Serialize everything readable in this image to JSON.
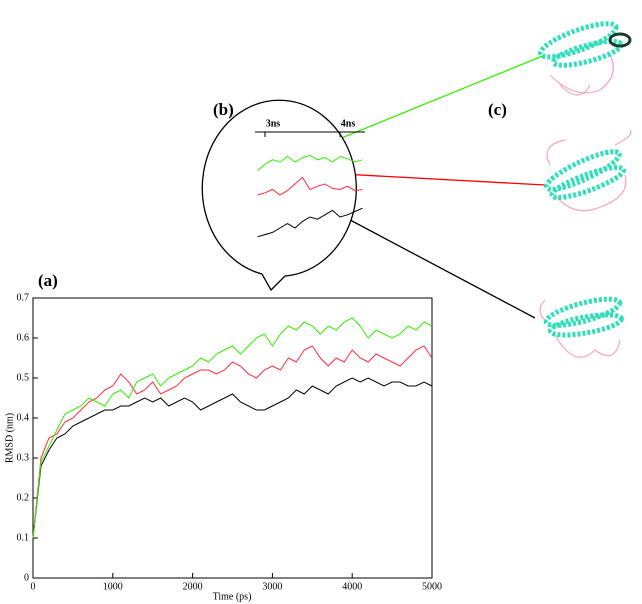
{
  "chart_data": [
    {
      "type": "line",
      "panel_label": "(a)",
      "x_label": "Time (ps)",
      "y_label": "RMSD (nm)",
      "x": [
        0,
        100,
        200,
        300,
        400,
        500,
        600,
        700,
        800,
        900,
        1000,
        1100,
        1200,
        1300,
        1400,
        1500,
        1600,
        1700,
        1800,
        1900,
        2000,
        2100,
        2200,
        2300,
        2400,
        2500,
        2600,
        2700,
        2800,
        2900,
        3000,
        3100,
        3200,
        3300,
        3400,
        3500,
        3600,
        3700,
        3800,
        3900,
        4000,
        4100,
        4200,
        4300,
        4400,
        4500,
        4600,
        4700,
        4800,
        4900,
        5000
      ],
      "series": [
        {
          "color": "#000000",
          "values": [
            0.1,
            0.28,
            0.32,
            0.35,
            0.36,
            0.38,
            0.39,
            0.4,
            0.41,
            0.42,
            0.42,
            0.43,
            0.43,
            0.44,
            0.45,
            0.44,
            0.45,
            0.43,
            0.44,
            0.45,
            0.44,
            0.42,
            0.43,
            0.44,
            0.45,
            0.46,
            0.44,
            0.43,
            0.42,
            0.42,
            0.43,
            0.44,
            0.45,
            0.47,
            0.46,
            0.48,
            0.47,
            0.46,
            0.48,
            0.49,
            0.5,
            0.49,
            0.5,
            0.49,
            0.48,
            0.49,
            0.49,
            0.48,
            0.48,
            0.49,
            0.48
          ]
        },
        {
          "color": "#ff2a3a",
          "values": [
            0.1,
            0.3,
            0.35,
            0.36,
            0.39,
            0.4,
            0.42,
            0.44,
            0.45,
            0.47,
            0.48,
            0.51,
            0.49,
            0.46,
            0.47,
            0.49,
            0.46,
            0.47,
            0.48,
            0.5,
            0.51,
            0.52,
            0.52,
            0.51,
            0.52,
            0.54,
            0.53,
            0.51,
            0.5,
            0.52,
            0.53,
            0.52,
            0.55,
            0.54,
            0.57,
            0.58,
            0.55,
            0.53,
            0.55,
            0.54,
            0.57,
            0.55,
            0.54,
            0.56,
            0.55,
            0.54,
            0.53,
            0.55,
            0.57,
            0.58,
            0.55
          ]
        },
        {
          "color": "#33ee00",
          "values": [
            0.1,
            0.29,
            0.33,
            0.37,
            0.41,
            0.42,
            0.43,
            0.45,
            0.44,
            0.43,
            0.46,
            0.47,
            0.45,
            0.49,
            0.5,
            0.51,
            0.48,
            0.5,
            0.51,
            0.52,
            0.53,
            0.55,
            0.54,
            0.56,
            0.57,
            0.58,
            0.56,
            0.58,
            0.6,
            0.61,
            0.58,
            0.61,
            0.63,
            0.62,
            0.64,
            0.63,
            0.61,
            0.63,
            0.62,
            0.64,
            0.65,
            0.63,
            0.6,
            0.62,
            0.61,
            0.6,
            0.61,
            0.63,
            0.62,
            0.64,
            0.63
          ]
        }
      ],
      "xlim": [
        0,
        5000
      ],
      "ylim": [
        0,
        0.7
      ],
      "xticks": [
        0,
        1000,
        2000,
        3000,
        4000,
        5000
      ],
      "yticks": [
        0,
        0.1,
        0.2,
        0.3,
        0.4,
        0.5,
        0.6,
        0.7
      ]
    },
    {
      "type": "line",
      "panel_label": "(b)",
      "x": [
        2.9,
        3.0,
        3.1,
        3.2,
        3.3,
        3.4,
        3.5,
        3.6,
        3.7,
        3.8,
        3.9,
        4.0,
        4.1,
        4.2,
        4.3
      ],
      "series": [
        {
          "color": "#33ee00",
          "values": [
            0.72,
            0.78,
            0.82,
            0.8,
            0.85,
            0.8,
            0.84,
            0.86,
            0.82,
            0.84,
            0.8,
            0.85,
            0.83,
            0.8,
            0.82
          ]
        },
        {
          "color": "#ff2a3a",
          "values": [
            0.5,
            0.52,
            0.55,
            0.5,
            0.54,
            0.6,
            0.66,
            0.55,
            0.58,
            0.6,
            0.56,
            0.55,
            0.58,
            0.54,
            0.55
          ]
        },
        {
          "color": "#000000",
          "values": [
            0.12,
            0.14,
            0.16,
            0.2,
            0.24,
            0.2,
            0.26,
            0.3,
            0.28,
            0.32,
            0.36,
            0.3,
            0.32,
            0.35,
            0.38
          ]
        }
      ],
      "xlim": [
        2.867,
        4.333
      ],
      "ylim": [
        0,
        1
      ],
      "xticks": [
        {
          "value": 3,
          "label": "3ns"
        },
        {
          "value": 4,
          "label": "4ns"
        }
      ]
    }
  ],
  "panel_c_label": "(c)"
}
